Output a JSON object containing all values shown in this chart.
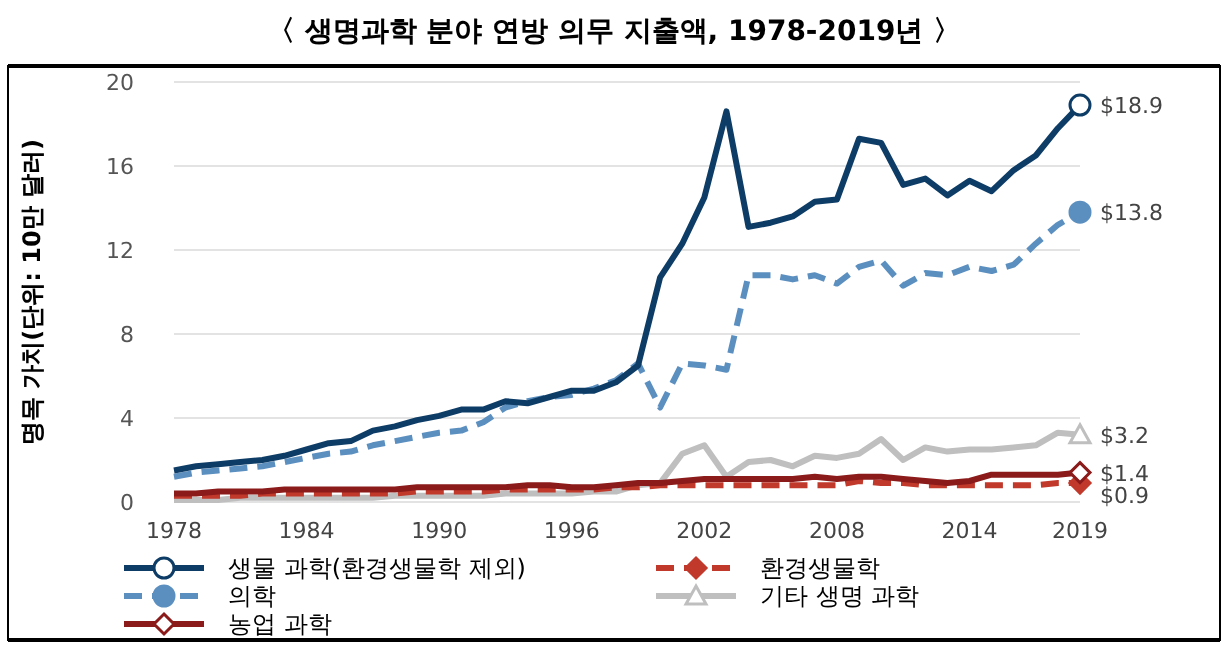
{
  "chart_data": {
    "type": "line",
    "title": "〈 생명과학 분야 연방 의무 지출액, 1978-2019년 〉",
    "ylabel": "명목 가치(단위: 10만 달러)",
    "x": [
      1978,
      1979,
      1980,
      1981,
      1982,
      1983,
      1984,
      1985,
      1986,
      1987,
      1988,
      1989,
      1990,
      1991,
      1992,
      1993,
      1994,
      1995,
      1996,
      1997,
      1998,
      1999,
      2000,
      2001,
      2002,
      2003,
      2004,
      2005,
      2006,
      2007,
      2008,
      2009,
      2010,
      2011,
      2012,
      2013,
      2014,
      2015,
      2016,
      2017,
      2018,
      2019
    ],
    "xlim": [
      1978,
      2019
    ],
    "xticks": [
      1978,
      1984,
      1990,
      1996,
      2002,
      2008,
      2014,
      2019
    ],
    "ylim": [
      0,
      20
    ],
    "yticks": [
      0,
      4,
      8,
      12,
      16,
      20
    ],
    "grid": "y",
    "legend": "bottom",
    "series": [
      {
        "name": "생물 과학(환경생물학 제외)",
        "color": "#0d3c66",
        "line_style": "solid",
        "values": [
          1.5,
          1.7,
          1.8,
          1.9,
          2.0,
          2.2,
          2.5,
          2.8,
          2.9,
          3.4,
          3.6,
          3.9,
          4.1,
          4.4,
          4.4,
          4.8,
          4.7,
          5.0,
          5.3,
          5.3,
          5.7,
          6.5,
          10.7,
          12.3,
          14.5,
          18.6,
          13.1,
          13.3,
          13.6,
          14.3,
          14.4,
          17.3,
          17.1,
          15.1,
          15.4,
          14.6,
          15.3,
          14.8,
          15.8,
          16.5,
          17.8,
          18.9
        ],
        "value_labels": [
          null,
          null,
          null,
          null,
          null,
          null,
          null,
          null,
          null,
          null,
          null,
          null,
          null,
          null,
          null,
          null,
          null,
          null,
          null,
          null,
          null,
          null,
          null,
          null,
          null,
          null,
          null,
          null,
          null,
          null,
          null,
          null,
          null,
          null,
          null,
          null,
          null,
          null,
          null,
          null,
          null,
          "$18.9"
        ]
      },
      {
        "name": "의학",
        "color": "#5b8fc0",
        "line_style": "dashed",
        "values": [
          1.2,
          1.4,
          1.5,
          1.6,
          1.7,
          1.9,
          2.1,
          2.3,
          2.4,
          2.7,
          2.9,
          3.1,
          3.3,
          3.4,
          3.8,
          4.5,
          4.8,
          5.0,
          5.1,
          5.4,
          5.8,
          6.6,
          4.5,
          6.6,
          6.5,
          6.3,
          10.8,
          10.8,
          10.6,
          10.8,
          10.4,
          11.2,
          11.5,
          10.3,
          10.9,
          10.8,
          11.2,
          11.0,
          11.3,
          12.3,
          13.2,
          13.8
        ],
        "value_labels": [
          null,
          null,
          null,
          null,
          null,
          null,
          null,
          null,
          null,
          null,
          null,
          null,
          null,
          null,
          null,
          null,
          null,
          null,
          null,
          null,
          null,
          null,
          null,
          null,
          null,
          null,
          null,
          null,
          null,
          null,
          null,
          null,
          null,
          null,
          null,
          null,
          null,
          null,
          null,
          null,
          null,
          "$13.8"
        ]
      },
      {
        "name": "농업 과학",
        "color": "#8b1a1a",
        "line_style": "solid",
        "values": [
          0.4,
          0.4,
          0.5,
          0.5,
          0.5,
          0.6,
          0.6,
          0.6,
          0.6,
          0.6,
          0.6,
          0.7,
          0.7,
          0.7,
          0.7,
          0.7,
          0.8,
          0.8,
          0.7,
          0.7,
          0.8,
          0.9,
          0.9,
          1.0,
          1.1,
          1.1,
          1.1,
          1.1,
          1.1,
          1.2,
          1.1,
          1.2,
          1.2,
          1.1,
          1.0,
          0.9,
          1.0,
          1.3,
          1.3,
          1.3,
          1.3,
          1.4
        ],
        "value_labels": [
          null,
          null,
          null,
          null,
          null,
          null,
          null,
          null,
          null,
          null,
          null,
          null,
          null,
          null,
          null,
          null,
          null,
          null,
          null,
          null,
          null,
          null,
          null,
          null,
          null,
          null,
          null,
          null,
          null,
          null,
          null,
          null,
          null,
          null,
          null,
          null,
          null,
          null,
          null,
          null,
          null,
          "$1.4"
        ]
      },
      {
        "name": "환경생물학",
        "color": "#c0392b",
        "line_style": "dashed",
        "values": [
          0.3,
          0.3,
          0.3,
          0.3,
          0.4,
          0.4,
          0.4,
          0.4,
          0.4,
          0.4,
          0.4,
          0.5,
          0.5,
          0.5,
          0.5,
          0.6,
          0.6,
          0.6,
          0.6,
          0.6,
          0.7,
          0.7,
          0.8,
          0.8,
          0.8,
          0.8,
          0.8,
          0.8,
          0.8,
          0.8,
          0.8,
          1.0,
          0.9,
          0.9,
          0.8,
          0.8,
          0.8,
          0.8,
          0.8,
          0.8,
          0.9,
          0.9
        ],
        "value_labels": [
          null,
          null,
          null,
          null,
          null,
          null,
          null,
          null,
          null,
          null,
          null,
          null,
          null,
          null,
          null,
          null,
          null,
          null,
          null,
          null,
          null,
          null,
          null,
          null,
          null,
          null,
          null,
          null,
          null,
          null,
          null,
          null,
          null,
          null,
          null,
          null,
          null,
          null,
          null,
          null,
          null,
          "$0.9"
        ]
      },
      {
        "name": "기타 생명 과학",
        "color": "#bfbfbf",
        "line_style": "solid",
        "values": [
          0.1,
          0.1,
          0.1,
          0.2,
          0.2,
          0.2,
          0.2,
          0.2,
          0.2,
          0.2,
          0.3,
          0.3,
          0.3,
          0.3,
          0.3,
          0.4,
          0.4,
          0.4,
          0.4,
          0.5,
          0.5,
          0.8,
          0.9,
          2.3,
          2.7,
          1.2,
          1.9,
          2.0,
          1.7,
          2.2,
          2.1,
          2.3,
          3.0,
          2.0,
          2.6,
          2.4,
          2.5,
          2.5,
          2.6,
          2.7,
          3.3,
          3.2
        ],
        "value_labels": [
          null,
          null,
          null,
          null,
          null,
          null,
          null,
          null,
          null,
          null,
          null,
          null,
          null,
          null,
          null,
          null,
          null,
          null,
          null,
          null,
          null,
          null,
          null,
          null,
          null,
          null,
          null,
          null,
          null,
          null,
          null,
          null,
          null,
          null,
          null,
          null,
          null,
          null,
          null,
          null,
          null,
          "$3.2"
        ]
      }
    ]
  }
}
